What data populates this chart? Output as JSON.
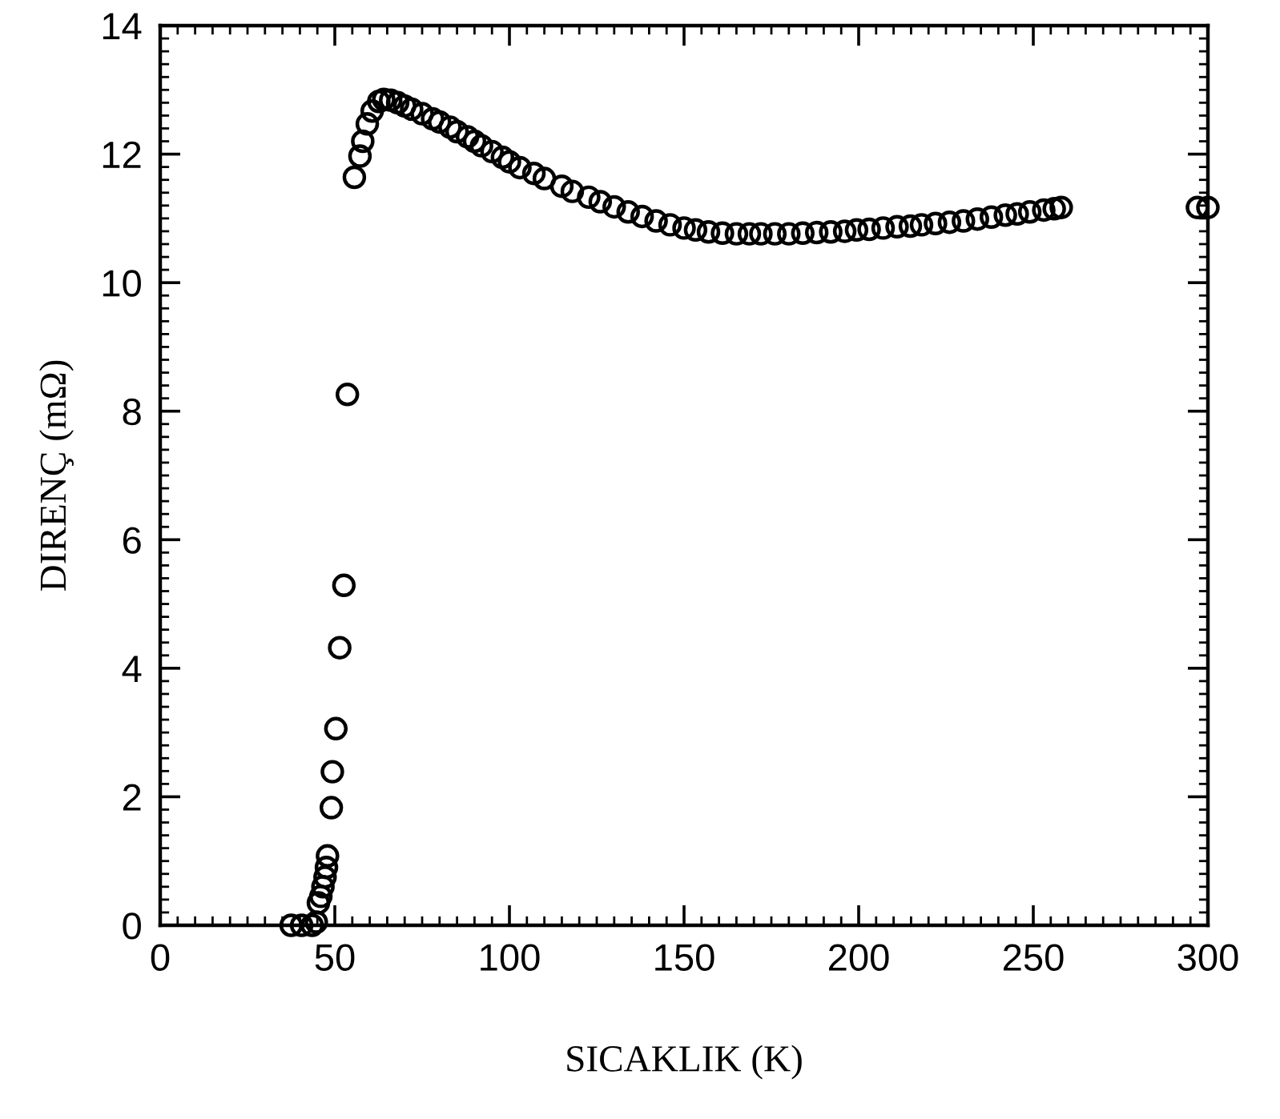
{
  "chart_data": {
    "type": "scatter",
    "xlabel": "SICAKLIK (K)",
    "ylabel": "DIRENÇ (mΩ)",
    "marker": "circle",
    "grid": false,
    "x": [
      37.5,
      40.5,
      43.5,
      44.7,
      45.3,
      46,
      46.6,
      47.2,
      47.6,
      47.9,
      49.0,
      49.3,
      50.3,
      51.4,
      52.6,
      53.6,
      55.6,
      57.2,
      58,
      59.3,
      60.7,
      62.6,
      64,
      66,
      68,
      70,
      72,
      75,
      78,
      80,
      83,
      85,
      88,
      90,
      92,
      95,
      98,
      100,
      103,
      107,
      110,
      115,
      118,
      122.7,
      126,
      130,
      134,
      138,
      142,
      146,
      150,
      153.3,
      157,
      161,
      165,
      168.7,
      172,
      176,
      180,
      184,
      188,
      192,
      196,
      199.4,
      203,
      207,
      211,
      214.8,
      218,
      222,
      226,
      230,
      234,
      238,
      242,
      245.4,
      249,
      253,
      256,
      258,
      297,
      300
    ],
    "values": [
      0,
      0,
      0,
      0.05,
      0.35,
      0.45,
      0.6,
      0.75,
      0.9,
      1.08,
      1.83,
      2.39,
      3.06,
      4.32,
      5.29,
      8.26,
      11.64,
      11.97,
      12.2,
      12.47,
      12.67,
      12.82,
      12.85,
      12.84,
      12.8,
      12.75,
      12.7,
      12.63,
      12.55,
      12.5,
      12.42,
      12.35,
      12.27,
      12.2,
      12.13,
      12.04,
      11.95,
      11.88,
      11.79,
      11.7,
      11.62,
      11.5,
      11.42,
      11.33,
      11.26,
      11.18,
      11.1,
      11.03,
      10.96,
      10.9,
      10.85,
      10.82,
      10.79,
      10.77,
      10.76,
      10.76,
      10.76,
      10.76,
      10.76,
      10.77,
      10.78,
      10.79,
      10.8,
      10.82,
      10.83,
      10.85,
      10.87,
      10.88,
      10.9,
      10.92,
      10.94,
      10.96,
      10.99,
      11.02,
      11.05,
      11.07,
      11.1,
      11.13,
      11.15,
      11.17,
      11.17,
      11.17
    ],
    "xlim": [
      0,
      300
    ],
    "xticks": [
      0,
      50,
      100,
      150,
      200,
      250,
      300
    ],
    "ylim": [
      0,
      14
    ],
    "yticks": [
      0,
      2,
      4,
      6,
      8,
      10,
      12,
      14
    ]
  }
}
